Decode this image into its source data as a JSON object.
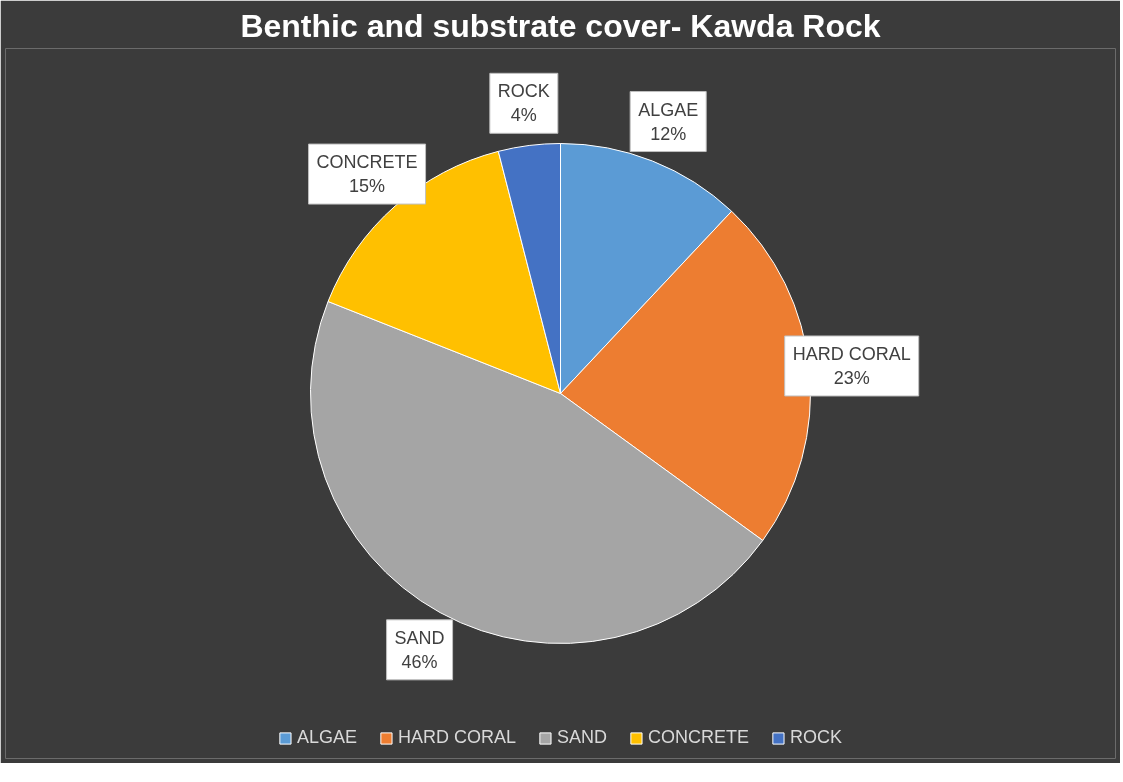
{
  "chart_data": {
    "type": "pie",
    "title": "Benthic and substrate cover- Kawda Rock",
    "categories": [
      "ALGAE",
      "HARD CORAL",
      "SAND",
      "CONCRETE",
      "ROCK"
    ],
    "values": [
      12,
      23,
      46,
      15,
      4
    ],
    "value_labels": [
      "12%",
      "23%",
      "46%",
      "15%",
      "4%"
    ],
    "colors": [
      "#5b9bd5",
      "#ed7d31",
      "#a5a5a5",
      "#ffc000",
      "#4472c4"
    ],
    "legend": "bottom"
  }
}
